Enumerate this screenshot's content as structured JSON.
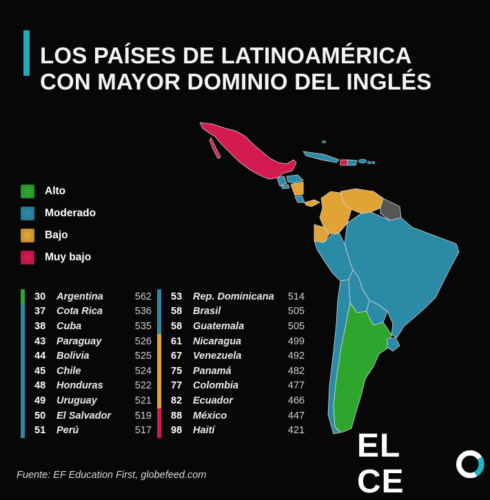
{
  "title": {
    "line1": "LOS PAÍSES DE LATINOAMÉRICA",
    "line2": "CON MAYOR DOMINIO DEL INGLÉS"
  },
  "legend": [
    {
      "key": "alto",
      "label": "Alto",
      "color": "#2ea62e"
    },
    {
      "key": "moderado",
      "label": "Moderado",
      "color": "#2b8aa6"
    },
    {
      "key": "bajo",
      "label": "Bajo",
      "color": "#e0a334"
    },
    {
      "key": "muy_bajo",
      "label": "Muy bajo",
      "color": "#d21a4e"
    }
  ],
  "rankings": [
    {
      "rank": "30",
      "country": "Argentina",
      "score": "562",
      "level": "alto"
    },
    {
      "rank": "37",
      "country": "Cota Rica",
      "score": "536",
      "level": "moderado"
    },
    {
      "rank": "38",
      "country": "Cuba",
      "score": "535",
      "level": "moderado"
    },
    {
      "rank": "43",
      "country": "Paraguay",
      "score": "526",
      "level": "moderado"
    },
    {
      "rank": "44",
      "country": "Bolivia",
      "score": "525",
      "level": "moderado"
    },
    {
      "rank": "45",
      "country": "Chile",
      "score": "524",
      "level": "moderado"
    },
    {
      "rank": "48",
      "country": "Honduras",
      "score": "522",
      "level": "moderado"
    },
    {
      "rank": "49",
      "country": "Uruguay",
      "score": "521",
      "level": "moderado"
    },
    {
      "rank": "50",
      "country": "El Salvador",
      "score": "519",
      "level": "moderado"
    },
    {
      "rank": "51",
      "country": "Perú",
      "score": "517",
      "level": "moderado"
    },
    {
      "rank": "53",
      "country": "Rep. Dominicana",
      "score": "514",
      "level": "moderado"
    },
    {
      "rank": "58",
      "country": "Brasil",
      "score": "505",
      "level": "moderado"
    },
    {
      "rank": "58",
      "country": "Guatemala",
      "score": "505",
      "level": "moderado"
    },
    {
      "rank": "61",
      "country": "Nicaragua",
      "score": "499",
      "level": "bajo"
    },
    {
      "rank": "67",
      "country": "Venezuela",
      "score": "492",
      "level": "bajo"
    },
    {
      "rank": "75",
      "country": "Panamá",
      "score": "482",
      "level": "bajo"
    },
    {
      "rank": "77",
      "country": "Colombia",
      "score": "477",
      "level": "bajo"
    },
    {
      "rank": "82",
      "country": "Ecuador",
      "score": "466",
      "level": "bajo"
    },
    {
      "rank": "88",
      "country": "México",
      "score": "447",
      "level": "muy_bajo"
    },
    {
      "rank": "98",
      "country": "Haití",
      "score": "421",
      "level": "muy_bajo"
    }
  ],
  "map_regions": [
    {
      "name": "Mexico",
      "level": "muy_bajo"
    },
    {
      "name": "Guatemala",
      "level": "moderado"
    },
    {
      "name": "Honduras",
      "level": "moderado"
    },
    {
      "name": "El Salvador",
      "level": "moderado"
    },
    {
      "name": "Nicaragua",
      "level": "bajo"
    },
    {
      "name": "Costa Rica",
      "level": "moderado"
    },
    {
      "name": "Panama",
      "level": "bajo"
    },
    {
      "name": "Cuba",
      "level": "moderado"
    },
    {
      "name": "Haiti",
      "level": "muy_bajo"
    },
    {
      "name": "Dominican Republic",
      "level": "moderado"
    },
    {
      "name": "Colombia",
      "level": "bajo"
    },
    {
      "name": "Venezuela",
      "level": "bajo"
    },
    {
      "name": "Guianas",
      "level": "sin_datos"
    },
    {
      "name": "Ecuador",
      "level": "bajo"
    },
    {
      "name": "Peru",
      "level": "moderado"
    },
    {
      "name": "Brazil",
      "level": "moderado"
    },
    {
      "name": "Bolivia",
      "level": "moderado"
    },
    {
      "name": "Paraguay",
      "level": "moderado"
    },
    {
      "name": "Chile",
      "level": "moderado"
    },
    {
      "name": "Argentina",
      "level": "alto"
    },
    {
      "name": "Uruguay",
      "level": "moderado"
    }
  ],
  "no_data_color": "#555555",
  "source": "Fuente: EF Education First, globefeed.com",
  "logo": {
    "text": "EL CE",
    "o": "O",
    "accent": "#1fb4c8"
  },
  "accent_color": "#22a9bd"
}
